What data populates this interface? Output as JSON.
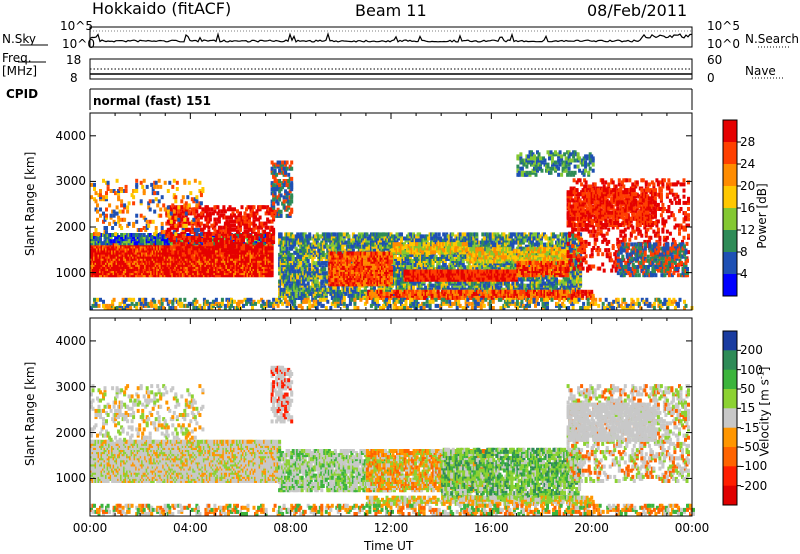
{
  "header": {
    "station": "Hokkaido (fitACF)",
    "beam": "Beam 11",
    "date": "08/Feb/2011"
  },
  "top_panels": {
    "nsky_label": "N.Sky",
    "nsearch_label": "N.Search",
    "noise_ticks": [
      "10^5",
      "10^0"
    ],
    "freq_label": "Freq.",
    "freq_unit": "[MHz]",
    "freq_ticks": [
      "18",
      "8"
    ],
    "nave_label": "Nave",
    "nave_ticks": [
      "60",
      "0"
    ],
    "cpid_label": "CPID",
    "cpid_value": "normal (fast) 151"
  },
  "chart_data": [
    {
      "type": "heatmap",
      "name": "power",
      "ylabel": "Slant Range [km]",
      "xlabel": "Time UT",
      "yticks": [
        "1000",
        "2000",
        "3000",
        "4000"
      ],
      "xticks": [
        "00:00",
        "04:00",
        "08:00",
        "12:00",
        "16:00",
        "20:00",
        "00:00"
      ],
      "xlim_hours": [
        0,
        24
      ],
      "ylim_km": [
        180,
        4500
      ],
      "colorbar_label": "Power [dB]",
      "colorbar_ticks": [
        "28",
        "24",
        "20",
        "16",
        "12",
        "8",
        "4"
      ],
      "colorbar_colors": [
        "#e50000",
        "#ff4000",
        "#ff8c00",
        "#ffc800",
        "#84c832",
        "#2e8b57",
        "#1e50b4",
        "#0000ff"
      ]
    },
    {
      "type": "heatmap",
      "name": "velocity",
      "ylabel": "Slant Range [km]",
      "xlabel": "Time UT",
      "yticks": [
        "1000",
        "2000",
        "3000",
        "4000"
      ],
      "xticks": [
        "00:00",
        "04:00",
        "08:00",
        "12:00",
        "16:00",
        "20:00",
        "00:00"
      ],
      "xlim_hours": [
        0,
        24
      ],
      "ylim_km": [
        180,
        4500
      ],
      "colorbar_label": "Velocity [m s",
      "colorbar_unit_sup": "-1",
      "colorbar_unit_end": "]",
      "colorbar_ticks": [
        "200",
        "100",
        "50",
        "15",
        "-15",
        "-50",
        "-100",
        "-200"
      ],
      "colorbar_colors": [
        "#1a3ca0",
        "#2e8b57",
        "#3cb43c",
        "#8cd232",
        "#c8c8c8",
        "#ff9600",
        "#ff6400",
        "#ff1e00",
        "#e00000"
      ]
    }
  ],
  "footer": {
    "time_label": "Time UT"
  }
}
